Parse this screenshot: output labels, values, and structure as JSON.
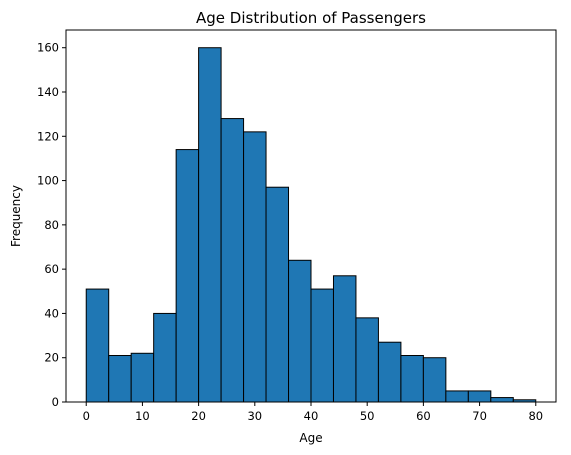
{
  "chart_data": {
    "type": "bar",
    "title": "Age Distribution of Passengers",
    "xlabel": "Age",
    "ylabel": "Frequency",
    "xlim": [
      -3.6,
      83.6
    ],
    "ylim": [
      0,
      168
    ],
    "x_ticks": [
      0,
      10,
      20,
      30,
      40,
      50,
      60,
      70,
      80
    ],
    "y_ticks": [
      0,
      20,
      40,
      60,
      80,
      100,
      120,
      140,
      160
    ],
    "bins": [
      {
        "start": 0.0,
        "end": 4.0,
        "value": 51
      },
      {
        "start": 4.0,
        "end": 8.0,
        "value": 21
      },
      {
        "start": 8.0,
        "end": 12.0,
        "value": 22
      },
      {
        "start": 12.0,
        "end": 16.0,
        "value": 40
      },
      {
        "start": 16.0,
        "end": 20.0,
        "value": 114
      },
      {
        "start": 20.0,
        "end": 24.0,
        "value": 160
      },
      {
        "start": 24.0,
        "end": 28.0,
        "value": 128
      },
      {
        "start": 28.0,
        "end": 32.0,
        "value": 122
      },
      {
        "start": 32.0,
        "end": 36.0,
        "value": 97
      },
      {
        "start": 36.0,
        "end": 40.0,
        "value": 64
      },
      {
        "start": 40.0,
        "end": 44.0,
        "value": 51
      },
      {
        "start": 44.0,
        "end": 48.0,
        "value": 57
      },
      {
        "start": 48.0,
        "end": 52.0,
        "value": 38
      },
      {
        "start": 52.0,
        "end": 56.0,
        "value": 27
      },
      {
        "start": 56.0,
        "end": 60.0,
        "value": 21
      },
      {
        "start": 60.0,
        "end": 64.0,
        "value": 20
      },
      {
        "start": 64.0,
        "end": 68.0,
        "value": 5
      },
      {
        "start": 68.0,
        "end": 72.0,
        "value": 5
      },
      {
        "start": 72.0,
        "end": 76.0,
        "value": 2
      },
      {
        "start": 76.0,
        "end": 80.0,
        "value": 1
      }
    ],
    "bar_color": "#1f77b4",
    "edge_color": "#000000",
    "grid": false,
    "legend": "none"
  }
}
